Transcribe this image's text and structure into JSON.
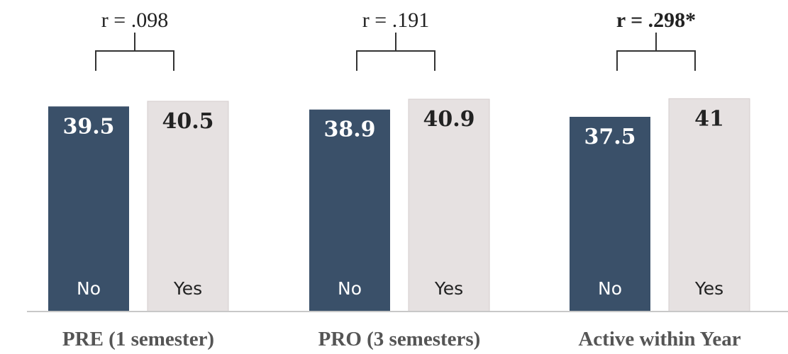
{
  "chart_data": {
    "type": "bar",
    "categories": [
      "PRE (1 semester)",
      "PRO (3 semesters)",
      "Active within Year"
    ],
    "series": [
      {
        "name": "No",
        "values": [
          39.5,
          38.9,
          37.5
        ]
      },
      {
        "name": "Yes",
        "values": [
          40.5,
          40.9,
          41
        ]
      }
    ],
    "value_labels": [
      [
        "39.5",
        "40.5"
      ],
      [
        "38.9",
        "40.9"
      ],
      [
        "37.5",
        "41"
      ]
    ],
    "annotations": [
      {
        "text": "r = .098",
        "bold": false
      },
      {
        "text": "r = .191",
        "bold": false
      },
      {
        "text": "r = .298*",
        "bold": true
      }
    ],
    "title": "",
    "xlabel": "",
    "ylabel": "",
    "grid": false,
    "colors": {
      "No": "#3a5069",
      "Yes": "#e6e1e1",
      "No_text": "#ffffff",
      "Yes_text": "#222222",
      "axis": "#c8c8c8"
    }
  }
}
